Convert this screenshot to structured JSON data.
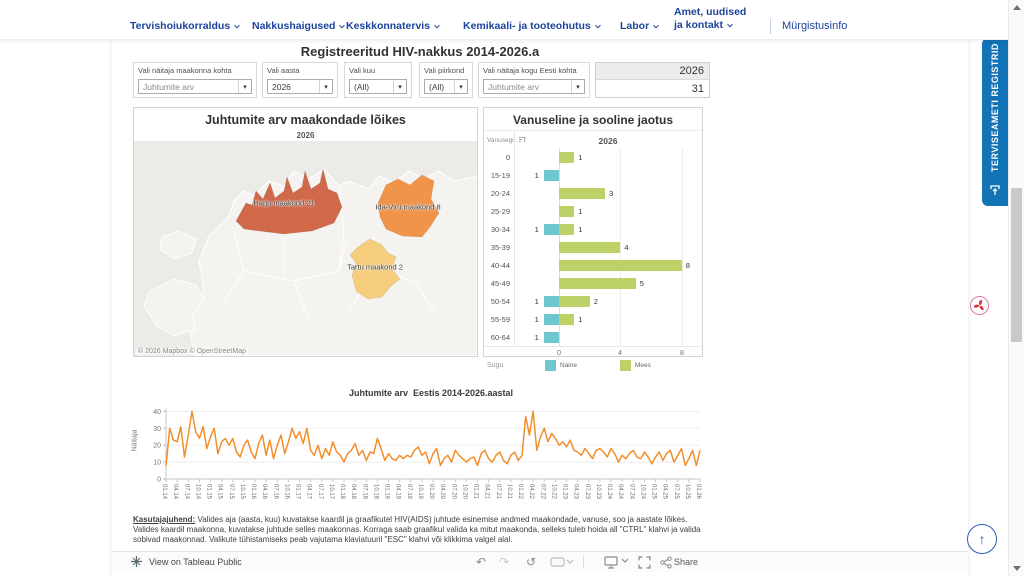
{
  "nav": {
    "items": [
      {
        "label": "Tervishoiukorraldus"
      },
      {
        "label": "Nakkushaigused"
      },
      {
        "label": "Keskkonnatervis"
      },
      {
        "label": "Kemikaali- ja tooteohutus"
      },
      {
        "label": "Labor"
      }
    ],
    "amet": {
      "line1": "Amet, uudised",
      "line2": "ja kontakt"
    },
    "right_link": "Mürgistusinfo"
  },
  "side": {
    "registry_tab": "TERVISEAMETI REGISTRID"
  },
  "dashboard": {
    "title": "Registreeritud HIV-nakkus 2014-2026.a",
    "filters": [
      {
        "label": "Vali näitaja maakonna kohta",
        "value": "Juhtumite arv"
      },
      {
        "label": "Vali aasta",
        "value": "2026"
      },
      {
        "label": "Vali kuu",
        "value": "(All)"
      },
      {
        "label": "Vali piirkond",
        "value": "(All)"
      },
      {
        "label": "Vali näitaja kogu Eesti kohta",
        "value": "Juhtumite arv"
      }
    ],
    "summary": {
      "year": "2026",
      "value": "31"
    },
    "map": {
      "title": "Juhtumite arv maakondade lõikes",
      "subtitle": "2026",
      "regions": [
        {
          "name": "Harju maakond",
          "value": 21,
          "label": "Harju maakond 21",
          "color": "#d0694a"
        },
        {
          "name": "Ida-Viru maakond",
          "value": 8,
          "label": "Ida-Viru maakond 8",
          "color": "#ef9449"
        },
        {
          "name": "Tartu maakond",
          "value": 2,
          "label": "Tartu maakond 2",
          "color": "#f5cd7c"
        }
      ],
      "attribution": "© 2026 Mapbox © OpenStreetMap"
    },
    "instructions": {
      "heading": "Kasutajajuhend:",
      "body": " Valides aja (aasta, kuu) kuvatakse kaardil ja graafikutel HIV(AIDS) juhtude esinemise andmed maakondade, vanuse, soo ja aastate lõikes. Valides kaardil maakonna, kuvatakse juhtude selles maakonnas. Korraga saab graafikul valida ka mitut maakonda, selleks tuleb hoida all \"CTRL\" klahvi ja valida sobivad maakonnad. Valikute tühistamiseks peab vajutama klaviatuuril \"ESC\" klahvi või klikkima valgel alal."
    },
    "toolbar": {
      "view_label": "View on Tableau Public",
      "share_label": "Share"
    }
  },
  "chart_data": [
    {
      "type": "bar",
      "orientation": "diverging-horizontal",
      "title": "Vanuseline ja sooline jaotus",
      "column_header": "Vanusegr..",
      "year_header": "2026",
      "categories": [
        "0",
        "15-19",
        "20-24",
        "25-29",
        "30-34",
        "35-39",
        "40-44",
        "45-49",
        "50-54",
        "55-59",
        "60-64"
      ],
      "series": [
        {
          "name": "Naine",
          "color": "#6ec6d0",
          "direction": "left",
          "values": [
            0,
            1,
            0,
            0,
            1,
            0,
            0,
            0,
            1,
            1,
            1
          ]
        },
        {
          "name": "Mees",
          "color": "#bcd266",
          "direction": "right",
          "values": [
            1,
            0,
            3,
            1,
            1,
            4,
            8,
            5,
            2,
            1,
            0
          ]
        }
      ],
      "x_ticks": [
        0,
        4,
        8
      ],
      "legend_title": "Sugu",
      "legend_position": "bottom"
    },
    {
      "type": "line",
      "title": "Juhtumite arv  Eestis 2014-2026.aastal",
      "ylabel": "Näitaja",
      "color": "#f28e2b",
      "y_ticks": [
        0,
        10,
        20,
        30,
        40
      ],
      "ylim": [
        0,
        42
      ],
      "grid": true,
      "x_tick_labels": [
        "01.14",
        "04.14",
        "07.14",
        "10.14",
        "01.15",
        "04.15",
        "07.15",
        "10.15",
        "01.16",
        "04.16",
        "07.16",
        "10.16",
        "01.17",
        "04.17",
        "07.17",
        "10.17",
        "01.18",
        "04.18",
        "07.18",
        "10.18",
        "01.19",
        "04.19",
        "07.19",
        "10.19",
        "01.20",
        "04.20",
        "07.20",
        "10.20",
        "01.21",
        "04.21",
        "07.21",
        "10.21",
        "01.22",
        "04.22",
        "07.22",
        "10.22",
        "01.23",
        "04.23",
        "07.23",
        "10.23",
        "01.24",
        "04.24",
        "07.24",
        "10.24",
        "01.25",
        "04.25",
        "07.25",
        "10.25",
        "01.26"
      ],
      "values": [
        8,
        30,
        23,
        22,
        31,
        13,
        26,
        40,
        28,
        24,
        31,
        18,
        25,
        30,
        15,
        22,
        24,
        20,
        24,
        16,
        13,
        20,
        23,
        16,
        12,
        21,
        26,
        14,
        23,
        12,
        20,
        26,
        15,
        22,
        30,
        24,
        28,
        21,
        30,
        17,
        14,
        20,
        12,
        18,
        14,
        22,
        16,
        14,
        10,
        15,
        17,
        21,
        14,
        17,
        11,
        16,
        15,
        24,
        18,
        11,
        15,
        12,
        11,
        14,
        12,
        14,
        13,
        17,
        19,
        14,
        16,
        9,
        15,
        18,
        8,
        12,
        14,
        10,
        17,
        14,
        12,
        10,
        12,
        13,
        8,
        15,
        17,
        12,
        10,
        14,
        16,
        11,
        9,
        14,
        16,
        11,
        14,
        37,
        26,
        40,
        17,
        25,
        30,
        22,
        27,
        24,
        20,
        22,
        19,
        23,
        17,
        16,
        14,
        18,
        15,
        12,
        17,
        18,
        16,
        13,
        18,
        15,
        10,
        14,
        12,
        15,
        17,
        13,
        12,
        16,
        13,
        9,
        13,
        16,
        11,
        15,
        17,
        10,
        14,
        18,
        8,
        12,
        17,
        8,
        17
      ]
    }
  ],
  "colors": {
    "nav_blue": "#1b449c",
    "tab_blue": "#1273b7",
    "line_orange": "#f28e2b"
  }
}
